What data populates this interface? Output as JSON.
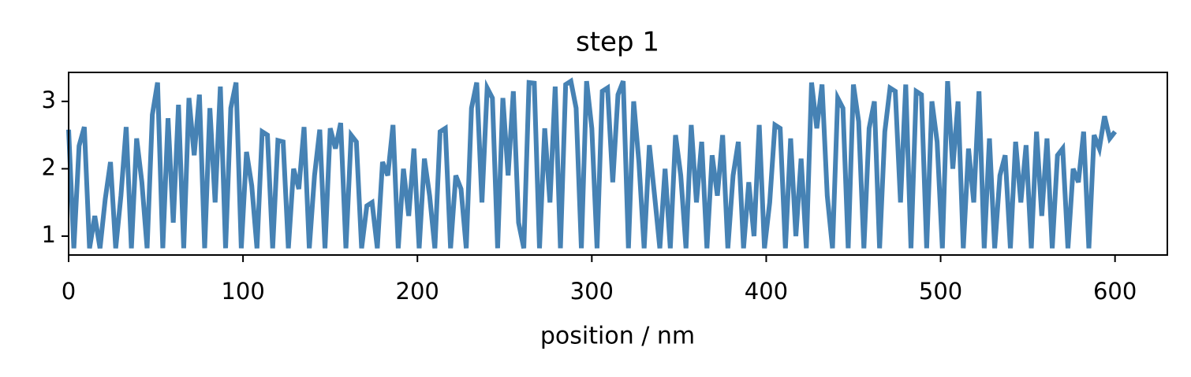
{
  "chart_data": {
    "type": "line",
    "title": "step 1",
    "x_label": "position / nm",
    "color": "#4682b4",
    "xlim": [
      0,
      630
    ],
    "ylim": [
      0.72,
      3.43
    ],
    "xticks": [
      0,
      100,
      200,
      300,
      400,
      500,
      600
    ],
    "yticks": [
      1,
      2,
      3
    ],
    "grid": false,
    "x": [
      0,
      3,
      6,
      9,
      12,
      15,
      18,
      21,
      24,
      27,
      30,
      33,
      36,
      39,
      42,
      45,
      48,
      51,
      54,
      57,
      60,
      63,
      66,
      69,
      72,
      75,
      78,
      81,
      84,
      87,
      90,
      93,
      96,
      99,
      102,
      105,
      108,
      111,
      114,
      117,
      120,
      123,
      126,
      129,
      132,
      135,
      138,
      141,
      144,
      147,
      150,
      153,
      156,
      159,
      162,
      165,
      168,
      171,
      174,
      177,
      180,
      183,
      186,
      189,
      192,
      195,
      198,
      201,
      204,
      207,
      210,
      213,
      216,
      219,
      222,
      225,
      228,
      231,
      234,
      237,
      240,
      243,
      246,
      249,
      252,
      255,
      258,
      261,
      264,
      267,
      270,
      273,
      276,
      279,
      282,
      285,
      288,
      291,
      294,
      297,
      300,
      303,
      306,
      309,
      312,
      315,
      318,
      321,
      324,
      327,
      330,
      333,
      336,
      339,
      342,
      345,
      348,
      351,
      354,
      357,
      360,
      363,
      366,
      369,
      372,
      375,
      378,
      381,
      384,
      387,
      390,
      393,
      396,
      399,
      402,
      405,
      408,
      411,
      414,
      417,
      420,
      423,
      426,
      429,
      432,
      435,
      438,
      441,
      444,
      447,
      450,
      453,
      456,
      459,
      462,
      465,
      468,
      471,
      474,
      477,
      480,
      483,
      486,
      489,
      492,
      495,
      498,
      501,
      504,
      507,
      510,
      513,
      516,
      519,
      522,
      525,
      528,
      531,
      534,
      537,
      540,
      543,
      546,
      549,
      552,
      555,
      558,
      561,
      564,
      567,
      570,
      573,
      576,
      579,
      582,
      585,
      588,
      591,
      594,
      597,
      600
    ],
    "values": [
      2.58,
      0.82,
      2.34,
      2.62,
      0.82,
      1.3,
      0.82,
      1.55,
      2.1,
      0.82,
      1.6,
      2.62,
      0.82,
      2.45,
      1.8,
      0.82,
      2.8,
      3.28,
      0.82,
      2.75,
      1.2,
      2.95,
      0.82,
      3.05,
      2.2,
      3.1,
      0.82,
      2.9,
      1.5,
      3.22,
      0.82,
      2.9,
      3.28,
      0.82,
      2.25,
      1.75,
      0.82,
      2.55,
      2.5,
      0.82,
      2.42,
      2.4,
      0.82,
      2.0,
      1.7,
      2.62,
      0.82,
      1.9,
      2.58,
      0.82,
      2.6,
      2.3,
      2.68,
      0.82,
      2.5,
      2.4,
      0.82,
      1.45,
      1.5,
      0.82,
      2.1,
      1.9,
      2.65,
      0.82,
      2.0,
      1.3,
      2.3,
      0.82,
      2.15,
      1.6,
      0.82,
      2.55,
      2.6,
      0.82,
      1.9,
      1.7,
      0.82,
      2.9,
      3.28,
      1.5,
      3.2,
      3.05,
      0.82,
      3.05,
      1.9,
      3.15,
      1.2,
      0.82,
      3.28,
      3.27,
      0.82,
      2.6,
      1.5,
      3.22,
      0.82,
      3.25,
      3.3,
      2.9,
      0.82,
      3.3,
      2.6,
      0.82,
      3.15,
      3.2,
      1.8,
      3.1,
      3.3,
      0.82,
      3.0,
      2.1,
      0.82,
      2.35,
      1.6,
      0.82,
      2.0,
      0.82,
      2.5,
      1.9,
      0.82,
      2.65,
      1.5,
      2.4,
      0.82,
      2.2,
      1.6,
      2.5,
      0.82,
      1.9,
      2.4,
      0.82,
      1.8,
      1.0,
      2.65,
      0.82,
      1.5,
      2.65,
      2.6,
      0.82,
      2.45,
      1.0,
      2.15,
      0.82,
      3.28,
      2.6,
      3.25,
      1.6,
      0.82,
      3.05,
      2.9,
      0.82,
      3.25,
      2.7,
      0.82,
      2.6,
      3.0,
      0.82,
      2.55,
      3.2,
      3.15,
      1.5,
      3.25,
      0.82,
      3.15,
      3.1,
      0.82,
      3.0,
      2.4,
      0.82,
      3.3,
      2.0,
      3.0,
      0.82,
      2.3,
      1.5,
      3.15,
      0.82,
      2.45,
      0.82,
      1.9,
      2.2,
      0.82,
      2.4,
      1.5,
      2.35,
      0.82,
      2.55,
      1.3,
      2.45,
      0.82,
      2.2,
      2.3,
      0.82,
      2.0,
      1.8,
      2.55,
      0.82,
      2.5,
      2.3,
      2.78,
      2.45,
      2.55
    ]
  }
}
